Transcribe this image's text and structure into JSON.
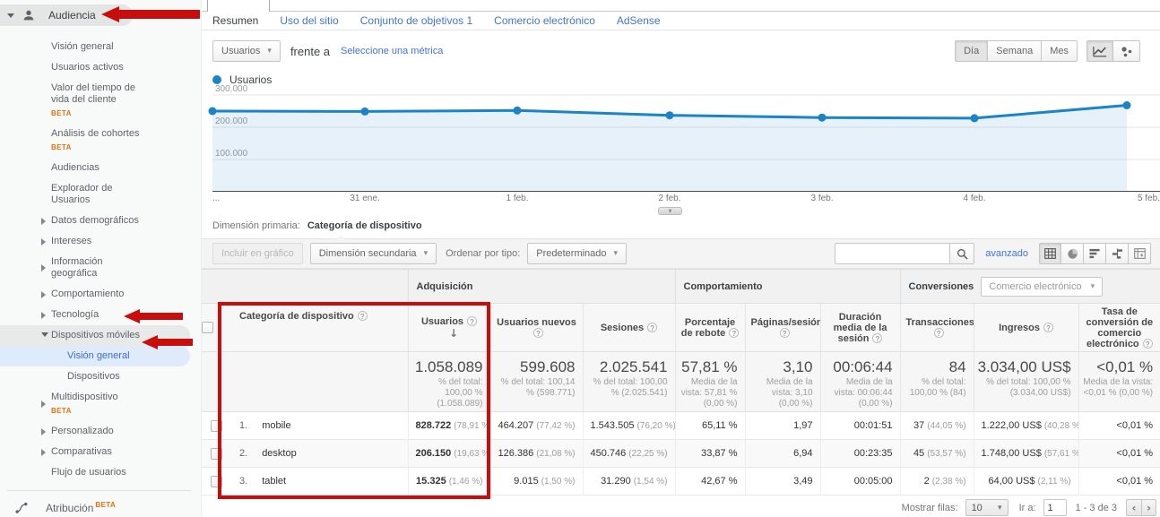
{
  "annotation": {
    "color": "#c90d0d"
  },
  "sidebar": {
    "section": {
      "label": "Audiencia"
    },
    "items": [
      {
        "label": "Visión general"
      },
      {
        "label": "Usuarios activos"
      },
      {
        "label": "Valor del tiempo de vida del cliente",
        "beta": "BETA"
      },
      {
        "label": "Análisis de cohortes",
        "beta": "BETA"
      },
      {
        "label": "Audiencias"
      },
      {
        "label": "Explorador de Usuarios"
      },
      {
        "label": "Datos demográficos",
        "caret": "right"
      },
      {
        "label": "Intereses",
        "caret": "right"
      },
      {
        "label": "Información geográfica",
        "caret": "right"
      },
      {
        "label": "Comportamiento",
        "caret": "right"
      },
      {
        "label": "Tecnología",
        "caret": "right"
      },
      {
        "label": "Dispositivos móviles",
        "caret": "down",
        "pill": true
      },
      {
        "label": "Visión general",
        "indent": 2,
        "selected": true
      },
      {
        "label": "Dispositivos",
        "indent": 2
      },
      {
        "label": "Multidispositivo",
        "caret": "right",
        "beta": "BETA"
      },
      {
        "label": "Personalizado",
        "caret": "right"
      },
      {
        "label": "Comparativas",
        "caret": "right"
      },
      {
        "label": "Flujo de usuarios"
      }
    ],
    "attribution": {
      "label": "Atribución",
      "beta": "BETA"
    }
  },
  "tabs": {
    "items": [
      "Resumen",
      "Uso del sitio",
      "Conjunto de objetivos 1",
      "Comercio electrónico",
      "AdSense"
    ],
    "active": "Resumen"
  },
  "controls": {
    "metric_dropdown": "Usuarios",
    "vs_label": "frente a",
    "select_metric_link": "Seleccione una métrica",
    "granularity": [
      "Día",
      "Semana",
      "Mes"
    ],
    "granularity_active": "Día"
  },
  "chart_data": {
    "type": "line",
    "title": "Usuarios",
    "legend": [
      "Usuarios"
    ],
    "legend_position": "top-left",
    "x_labels": [
      "...",
      "31 ene.",
      "1 feb.",
      "2 feb.",
      "3 feb.",
      "4 feb.",
      "5 feb."
    ],
    "series": [
      {
        "name": "Usuarios",
        "values": [
          250000,
          249000,
          252000,
          237000,
          230000,
          228000,
          268000
        ]
      }
    ],
    "y_ticks": [
      {
        "value": 100000,
        "label": "100.000"
      },
      {
        "value": 200000,
        "label": "200.000"
      },
      {
        "value": 300000,
        "label": "300.000"
      }
    ],
    "ylim": [
      0,
      300000
    ],
    "grid": true,
    "line_color": "#1b84c8",
    "fill_color": "rgba(27,132,200,0.11)"
  },
  "dimension_bar": {
    "label": "Dimensión primaria:",
    "active": "Categoría de dispositivo"
  },
  "toolbar": {
    "plot_rows": "Incluir en gráfico",
    "secondary_dimension": "Dimensión secundaria",
    "sort_label": "Ordenar por tipo:",
    "sort_value": "Predeterminado",
    "advanced_link": "avanzado"
  },
  "table": {
    "groups": {
      "acquisition": "Adquisición",
      "behavior": "Comportamiento",
      "conversions": "Conversiones",
      "conversions_selector": "Comercio electrónico"
    },
    "dimension_header": "Categoría de dispositivo",
    "columns": [
      "Usuarios",
      "Usuarios nuevos",
      "Sesiones",
      "Porcentaje de rebote",
      "Páginas/sesión",
      "Duración media de la sesión",
      "Transacciones",
      "Ingresos",
      "Tasa de conversión de comercio electrónico"
    ],
    "sorted_column": "Usuarios",
    "totals": [
      {
        "value": "1.058.089",
        "sub": "% del total: 100,00 % (1.058.089)"
      },
      {
        "value": "599.608",
        "sub": "% del total: 100,14 % (598.771)"
      },
      {
        "value": "2.025.541",
        "sub": "% del total: 100,00 % (2.025.541)"
      },
      {
        "value": "57,81 %",
        "sub": "Media de la vista: 57,81 % (0,00 %)"
      },
      {
        "value": "3,10",
        "sub": "Media de la vista: 3,10 (0,00 %)"
      },
      {
        "value": "00:06:44",
        "sub": "Media de la vista: 00:06:44 (0,00 %)"
      },
      {
        "value": "84",
        "sub": "% del total: 100,00 % (84)"
      },
      {
        "value": "3.034,00 US$",
        "sub": "% del total: 100,00 % (3.034,00 US$)"
      },
      {
        "value": "<0,01 %",
        "sub": "Media de la vista: <0,01 % (0,00 %)"
      }
    ],
    "rows": [
      {
        "rank": "1.",
        "name": "mobile",
        "metrics": [
          {
            "v": "828.722",
            "s": "(78,91 %)"
          },
          {
            "v": "464.207",
            "s": "(77,42 %)"
          },
          {
            "v": "1.543.505",
            "s": "(76,20 %)"
          },
          {
            "v": "65,11 %"
          },
          {
            "v": "1,97"
          },
          {
            "v": "00:01:51"
          },
          {
            "v": "37",
            "s": "(44,05 %)"
          },
          {
            "v": "1.222,00 US$",
            "s": "(40,28 %)"
          },
          {
            "v": "<0,01 %"
          }
        ]
      },
      {
        "rank": "2.",
        "name": "desktop",
        "metrics": [
          {
            "v": "206.150",
            "s": "(19,63 %)"
          },
          {
            "v": "126.386",
            "s": "(21,08 %)"
          },
          {
            "v": "450.746",
            "s": "(22,25 %)"
          },
          {
            "v": "33,87 %"
          },
          {
            "v": "6,94"
          },
          {
            "v": "00:23:35"
          },
          {
            "v": "45",
            "s": "(53,57 %)"
          },
          {
            "v": "1.748,00 US$",
            "s": "(57,61 %)"
          },
          {
            "v": "<0,01 %"
          }
        ]
      },
      {
        "rank": "3.",
        "name": "tablet",
        "metrics": [
          {
            "v": "15.325",
            "s": "(1,46 %)"
          },
          {
            "v": "9.015",
            "s": "(1,50 %)"
          },
          {
            "v": "31.290",
            "s": "(1,54 %)"
          },
          {
            "v": "42,67 %"
          },
          {
            "v": "3,49"
          },
          {
            "v": "00:05:00"
          },
          {
            "v": "2",
            "s": "(2,38 %)"
          },
          {
            "v": "64,00 US$",
            "s": "(2,11 %)"
          },
          {
            "v": "<0,01 %"
          }
        ]
      }
    ],
    "footer": {
      "show_rows_label": "Mostrar filas:",
      "show_rows_value": "10",
      "goto_label": "Ir a:",
      "goto_value": "1",
      "range_label": "1 - 3 de 3"
    }
  }
}
